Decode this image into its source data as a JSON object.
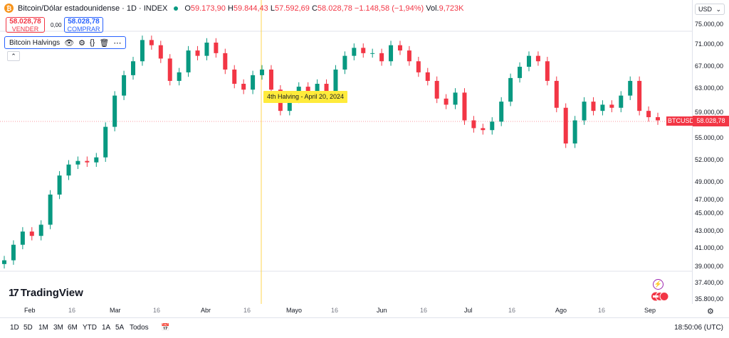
{
  "header": {
    "symbol_title": "Bitcoin/Dólar estadounidense · 1D · INDEX",
    "o_label": "O",
    "o_value": "59.173,90",
    "h_label": "H",
    "h_value": "59.844,43",
    "l_label": "L",
    "l_value": "57.592,69",
    "c_label": "C",
    "c_value": "58.028,78",
    "change": "−1.148,58 (−1,94%)",
    "vol_label": "Vol.",
    "vol_value": "9,723K"
  },
  "trade": {
    "sell_price": "58.028,78",
    "sell_label": "VENDER",
    "spread": "0,00",
    "buy_price": "58.028,78",
    "buy_label": "COMPRAR"
  },
  "indicator": {
    "name": "Bitcoin Halvings"
  },
  "currency": "USD",
  "price_axis": [
    "75.000,00",
    "71.000,00",
    "67.000,00",
    "63.000,00",
    "59.000,00",
    "55.000,00",
    "52.000,00",
    "49.000,00",
    "47.000,00",
    "45.000,00",
    "43.000,00",
    "41.000,00",
    "39.000,00",
    "37.400,00",
    "35.800,00"
  ],
  "current": {
    "ticker": "BTCUSD",
    "price": "58.028,78",
    "value": 58028.78
  },
  "halving": {
    "text": "4th Halving - April 20, 2024"
  },
  "time_axis": [
    {
      "label": "Feb",
      "major": true
    },
    {
      "label": "16",
      "major": false
    },
    {
      "label": "Mar",
      "major": true
    },
    {
      "label": "16",
      "major": false
    },
    {
      "label": "Abr",
      "major": true
    },
    {
      "label": "16",
      "major": false
    },
    {
      "label": "Mayo",
      "major": true
    },
    {
      "label": "16",
      "major": false
    },
    {
      "label": "Jun",
      "major": true
    },
    {
      "label": "16",
      "major": false
    },
    {
      "label": "Jul",
      "major": true
    },
    {
      "label": "16",
      "major": false
    },
    {
      "label": "Ago",
      "major": true
    },
    {
      "label": "16",
      "major": false
    },
    {
      "label": "Sep",
      "major": true
    }
  ],
  "ranges": [
    "1D",
    "5D",
    "1M",
    "3M",
    "6M",
    "YTD",
    "1A",
    "5A",
    "Todos"
  ],
  "clock": "18:50:06 (UTC)",
  "brand": "TradingView",
  "colors": {
    "up": "#089981",
    "down": "#f23645",
    "halving": "#ffeb3b"
  },
  "chart_data": {
    "type": "candlestick",
    "price_scale": "log",
    "ylim": [
      35800,
      75000
    ],
    "x": [
      "Feb",
      "16",
      "Mar",
      "16",
      "Abr",
      "16",
      "Mayo",
      "16",
      "Jun",
      "16",
      "Jul",
      "16",
      "Ago",
      "16",
      "Sep"
    ],
    "close_series_approx": [
      39800,
      41500,
      43000,
      42500,
      43800,
      47500,
      50000,
      51500,
      52000,
      51800,
      52500,
      57000,
      62000,
      65500,
      68000,
      72000,
      71000,
      68500,
      64500,
      66000,
      70000,
      69000,
      71500,
      69500,
      66500,
      64000,
      63000,
      65500,
      66500,
      63000,
      59500,
      61500,
      63500,
      62500,
      64000,
      62500,
      66500,
      69000,
      70500,
      69500,
      69500,
      68000,
      71000,
      70000,
      68000,
      66000,
      64500,
      61500,
      60500,
      62500,
      58000,
      56800,
      56500,
      57800,
      61000,
      65000,
      67000,
      69000,
      68000,
      64500,
      60000,
      54500,
      58000,
      61000,
      59500,
      60500,
      60000,
      62000,
      64500,
      59500,
      58500,
      58000
    ]
  }
}
